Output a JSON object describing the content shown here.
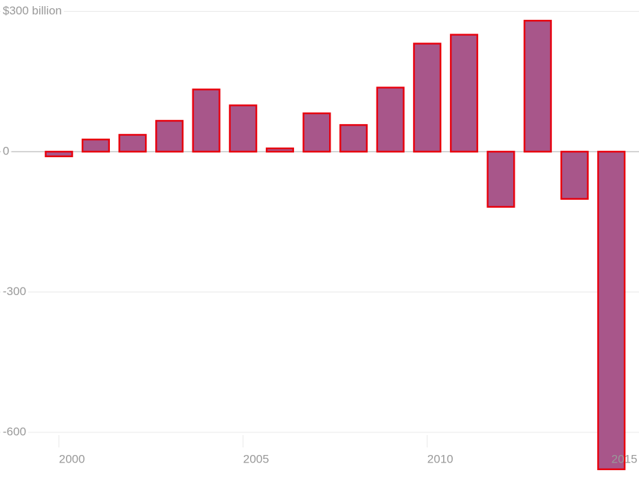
{
  "chart_data": {
    "type": "bar",
    "x": [
      2000,
      2001,
      2002,
      2003,
      2004,
      2005,
      2006,
      2007,
      2008,
      2009,
      2010,
      2011,
      2012,
      2013,
      2014,
      2015
    ],
    "values": [
      -10,
      26,
      36,
      66,
      133,
      99,
      7,
      82,
      57,
      137,
      231,
      250,
      -118,
      280,
      -101,
      -679
    ],
    "color": "#a8568a",
    "edge_color": "#e8000d",
    "xlim": [
      1998.4,
      2015.75
    ],
    "xticks": [
      2000,
      2005,
      2010,
      2015
    ],
    "ylim": [
      -696,
      300
    ],
    "yticks": [
      {
        "value": 300,
        "label": "$300 billion"
      },
      0,
      -300,
      -600
    ],
    "grid": true
  }
}
